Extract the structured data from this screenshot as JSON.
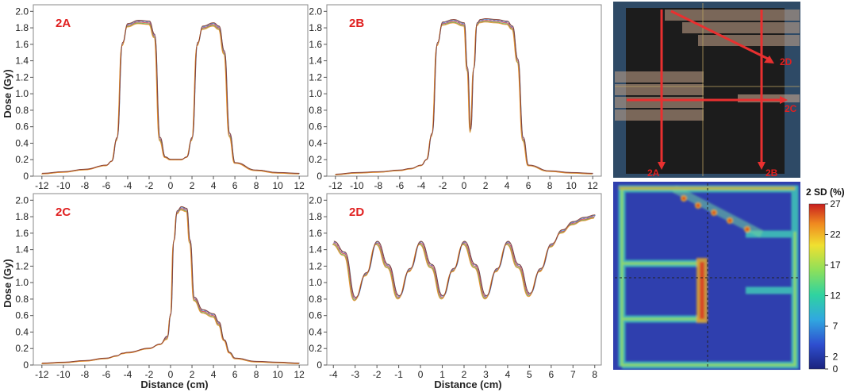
{
  "figure": {
    "ylabel": "Dose (Gy)",
    "xlabel": "Distance (cm)",
    "colorbar_title": "2 SD (%)",
    "colorbar_ticks": [
      "0",
      "2",
      "7",
      "12",
      "17",
      "22",
      "27"
    ],
    "beam_labels": [
      "2A",
      "2B",
      "2C",
      "2D"
    ],
    "colors": {
      "series": [
        "#e0403a",
        "#3b9bd6",
        "#4caf50",
        "#8e6bb8",
        "#f28c28",
        "#8b3a2a"
      ],
      "title_red": "#e02020",
      "beam_bg": "#2e4a66",
      "heatmap_bg": "#2f3fae"
    }
  },
  "chart_data": [
    {
      "type": "line",
      "title": "2A",
      "ylabel": "Dose (Gy)",
      "xlabel": "",
      "xlim": [
        -12.8,
        12.8
      ],
      "ylim": [
        0,
        2.08
      ],
      "xticks": [
        -12,
        -10,
        -8,
        -6,
        -4,
        -2,
        0,
        2,
        4,
        6,
        8,
        10,
        12
      ],
      "yticks": [
        0,
        0.2,
        0.4,
        0.6,
        0.8,
        1.0,
        1.2,
        1.4,
        1.6,
        1.8,
        2.0
      ],
      "x": [
        -12,
        -10,
        -8,
        -6,
        -5.5,
        -5,
        -4.5,
        -4,
        -3,
        -2,
        -1.5,
        -1,
        -0.5,
        0,
        1,
        1.5,
        2,
        2.5,
        3,
        4,
        4.5,
        5,
        5.5,
        6,
        8,
        10,
        12
      ],
      "y": [
        0.03,
        0.05,
        0.08,
        0.13,
        0.18,
        0.45,
        1.6,
        1.83,
        1.87,
        1.86,
        1.7,
        0.45,
        0.23,
        0.2,
        0.2,
        0.23,
        0.45,
        1.6,
        1.8,
        1.84,
        1.8,
        1.5,
        0.5,
        0.16,
        0.07,
        0.04,
        0.03
      ]
    },
    {
      "type": "line",
      "title": "2B",
      "ylabel": "",
      "xlabel": "",
      "xlim": [
        -12.8,
        12.8
      ],
      "ylim": [
        0,
        2.08
      ],
      "xticks": [
        -12,
        -10,
        -8,
        -6,
        -4,
        -2,
        0,
        2,
        4,
        6,
        8,
        10,
        12
      ],
      "yticks": [
        0,
        0.2,
        0.4,
        0.6,
        0.8,
        1.0,
        1.2,
        1.4,
        1.6,
        1.8,
        2.0
      ],
      "x": [
        -12,
        -10,
        -8,
        -6,
        -5,
        -4,
        -3.5,
        -3,
        -2.5,
        -2,
        -1,
        0,
        0.3,
        0.6,
        0.9,
        1.2,
        1.5,
        2,
        3,
        4,
        4.5,
        5,
        5.5,
        6,
        8,
        10,
        12
      ],
      "y": [
        0.02,
        0.04,
        0.05,
        0.07,
        0.09,
        0.13,
        0.2,
        0.5,
        1.6,
        1.85,
        1.88,
        1.84,
        1.3,
        0.55,
        1.3,
        1.84,
        1.88,
        1.89,
        1.88,
        1.86,
        1.8,
        1.4,
        0.45,
        0.13,
        0.06,
        0.04,
        0.03
      ]
    },
    {
      "type": "line",
      "title": "2C",
      "ylabel": "Dose (Gy)",
      "xlabel": "Distance (cm)",
      "xlim": [
        -12.8,
        12.8
      ],
      "ylim": [
        0,
        2.08
      ],
      "xticks": [
        -12,
        -10,
        -8,
        -6,
        -4,
        -2,
        0,
        2,
        4,
        6,
        8,
        10,
        12
      ],
      "yticks": [
        0,
        0.2,
        0.4,
        0.6,
        0.8,
        1.0,
        1.2,
        1.4,
        1.6,
        1.8,
        2.0
      ],
      "x": [
        -12,
        -10,
        -8,
        -6,
        -5,
        -4.5,
        -4,
        -2,
        -1,
        -0.3,
        0,
        0.3,
        0.6,
        1,
        1.5,
        1.8,
        2.2,
        3,
        4,
        4.5,
        5,
        5.5,
        6,
        8,
        10,
        12
      ],
      "y": [
        0.02,
        0.03,
        0.05,
        0.08,
        0.11,
        0.14,
        0.15,
        0.2,
        0.25,
        0.33,
        0.6,
        1.5,
        1.85,
        1.9,
        1.88,
        1.5,
        0.8,
        0.65,
        0.6,
        0.5,
        0.3,
        0.15,
        0.08,
        0.04,
        0.03,
        0.02
      ]
    },
    {
      "type": "line",
      "title": "2D",
      "ylabel": "",
      "xlabel": "Distance (cm)",
      "xlim": [
        -4.3,
        8.3
      ],
      "ylim": [
        0,
        2.08
      ],
      "xticks": [
        -4,
        -3,
        -2,
        -1,
        0,
        1,
        2,
        3,
        4,
        5,
        6,
        7,
        8
      ],
      "yticks": [
        0,
        0.2,
        0.4,
        0.6,
        0.8,
        1.0,
        1.2,
        1.4,
        1.6,
        1.8,
        2.0
      ],
      "x": [
        -4,
        -3.5,
        -3,
        -2.5,
        -2,
        -1.5,
        -1,
        -0.5,
        0,
        0.5,
        1,
        1.5,
        2,
        2.5,
        3,
        3.5,
        4,
        4.5,
        5,
        5.5,
        6,
        6.5,
        7,
        7.5,
        8
      ],
      "y": [
        1.48,
        1.35,
        0.8,
        1.1,
        1.48,
        1.2,
        0.82,
        1.15,
        1.48,
        1.2,
        0.82,
        1.15,
        1.48,
        1.2,
        0.82,
        1.15,
        1.48,
        1.2,
        0.85,
        1.15,
        1.45,
        1.62,
        1.72,
        1.77,
        1.8
      ]
    }
  ]
}
